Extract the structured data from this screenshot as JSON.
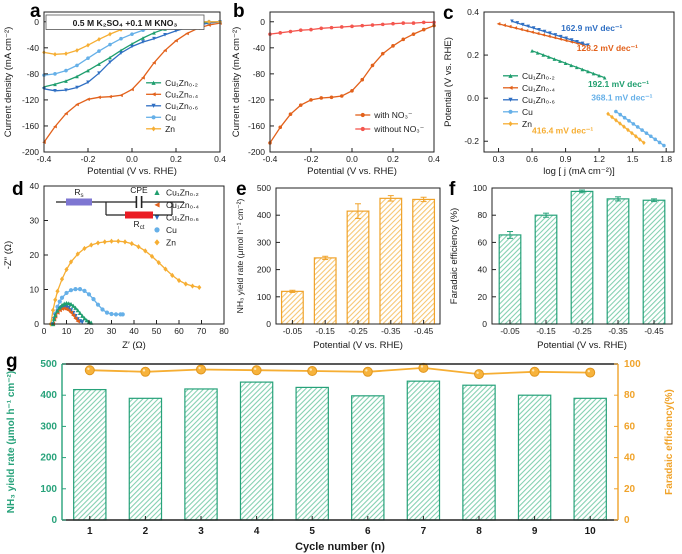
{
  "figure": {
    "colors": {
      "green": "#1f9e6e",
      "orange": "#e2611b",
      "blue": "#2f6fc3",
      "lightblue": "#66b0e8",
      "yellow": "#f6ae33",
      "red": "#f4564e",
      "bar_yellow_edge": "#f0a32a",
      "bar_yellow_hatch": "#f6c269",
      "bar_green_edge": "#27a27a",
      "bar_green_hatch": "#7accaa",
      "axis": "#222222",
      "rs_box": "#7e76d2",
      "rct_box": "#ea1c24",
      "g_left_axis": "#27a27a",
      "g_right_axis": "#f0a32a"
    }
  },
  "chart_data": [
    {
      "id": "a",
      "letter": "a",
      "type": "line",
      "title": "0.5 M K₂SO₄ +0.1 M KNO₃",
      "xlabel": "Potential (V vs. RHE)",
      "ylabel": "Current density (mA cm⁻²)",
      "xlim": [
        -0.4,
        0.4
      ],
      "ylim": [
        -200,
        15
      ],
      "xticks": [
        -0.4,
        -0.2,
        0,
        0.2,
        0.4
      ],
      "xtick_labels": [
        "-0.4",
        "-0.2",
        "0.0",
        "0.2",
        "0.4"
      ],
      "yticks": [
        0,
        -40,
        -80,
        -120,
        -160,
        -200
      ],
      "ytick_labels": [
        "0",
        "-40",
        "-80",
        "-120",
        "-160",
        "-200"
      ],
      "x": [
        -0.4,
        -0.35,
        -0.3,
        -0.25,
        -0.2,
        -0.15,
        -0.1,
        -0.05,
        0,
        0.05,
        0.1,
        0.15,
        0.2,
        0.25,
        0.3,
        0.35,
        0.4
      ],
      "series": [
        {
          "name": "Cu₁Zn₀.₂",
          "color": "green",
          "marker": "triangle-up",
          "values": [
            -100,
            -96,
            -91,
            -84,
            -75,
            -65,
            -55,
            -44,
            -34,
            -25,
            -17,
            -11,
            -7,
            -4,
            -2,
            -1,
            0
          ]
        },
        {
          "name": "Cu₁Zn₀.₄",
          "color": "orange",
          "marker": "triangle-left",
          "values": [
            -185,
            -161,
            -141,
            -127,
            -119,
            -116,
            -115,
            -113,
            -104,
            -86,
            -63,
            -44,
            -29,
            -18,
            -10,
            -5,
            -2
          ]
        },
        {
          "name": "Cu₁Zn₀.₆",
          "color": "blue",
          "marker": "triangle-down",
          "values": [
            -103,
            -106,
            -105,
            -101,
            -93,
            -79,
            -62,
            -48,
            -38,
            -31,
            -26,
            -20,
            -14,
            -9,
            -5,
            -2,
            0
          ]
        },
        {
          "name": "Cu",
          "color": "lightblue",
          "marker": "circle",
          "values": [
            -82,
            -80,
            -75,
            -67,
            -56,
            -45,
            -35,
            -26,
            -19,
            -13,
            -8,
            -5,
            -3,
            -1,
            0,
            0,
            0
          ]
        },
        {
          "name": "Zn",
          "color": "yellow",
          "marker": "diamond",
          "values": [
            -47,
            -50,
            -49,
            -44,
            -36,
            -27,
            -19,
            -12,
            -7,
            -4,
            -2,
            -1,
            0,
            0,
            0,
            0,
            0
          ]
        }
      ],
      "legend": {
        "x": 0.58,
        "y": 0.47,
        "style": "line+marker",
        "spacing": 11.5
      }
    },
    {
      "id": "b",
      "letter": "b",
      "type": "line",
      "xlabel": "Potential (V vs. RHE)",
      "ylabel": "Current density (mA cm⁻²)",
      "xlim": [
        -0.4,
        0.4
      ],
      "ylim": [
        -200,
        15
      ],
      "xticks": [
        -0.4,
        -0.2,
        0,
        0.2,
        0.4
      ],
      "xtick_labels": [
        "-0.4",
        "-0.2",
        "0.0",
        "0.2",
        "0.4"
      ],
      "yticks": [
        0,
        -40,
        -80,
        -120,
        -160,
        -200
      ],
      "ytick_labels": [
        "0",
        "-40",
        "-80",
        "-120",
        "-160",
        "-200"
      ],
      "x": [
        -0.4,
        -0.35,
        -0.3,
        -0.25,
        -0.2,
        -0.15,
        -0.1,
        -0.05,
        0,
        0.05,
        0.1,
        0.15,
        0.2,
        0.25,
        0.3,
        0.35,
        0.4
      ],
      "series": [
        {
          "name": "with NO₃⁻",
          "color": "orange",
          "marker": "circle",
          "values": [
            -186,
            -162,
            -142,
            -128,
            -120,
            -117,
            -116,
            -114,
            -106,
            -89,
            -67,
            -49,
            -37,
            -27,
            -19,
            -12,
            -6
          ]
        },
        {
          "name": "without NO₃⁻",
          "color": "red",
          "marker": "circle",
          "values": [
            -19,
            -17,
            -15,
            -13,
            -12,
            -10,
            -9,
            -8,
            -7,
            -6,
            -5,
            -4,
            -3,
            -2,
            -2,
            -1,
            -1
          ]
        }
      ],
      "legend": {
        "x": 0.52,
        "y": 0.7,
        "style": "line+marker",
        "spacing": 14
      }
    },
    {
      "id": "c",
      "letter": "c",
      "type": "line",
      "xlabel": "log [ j (mA cm⁻²)]",
      "ylabel": "Potential (V vs. RHE)",
      "xlim": [
        0.17,
        1.87
      ],
      "ylim": [
        -0.25,
        0.4
      ],
      "xticks": [
        0.3,
        0.6,
        0.9,
        1.2,
        1.5,
        1.8
      ],
      "xtick_labels": [
        "0.3",
        "0.6",
        "0.9",
        "1.2",
        "1.5",
        "1.8"
      ],
      "yticks": [
        0.4,
        0.2,
        0,
        -0.2
      ],
      "ytick_labels": [
        "0.4",
        "0.2",
        "0.0",
        "-0.2"
      ],
      "series": [
        {
          "name": "Cu₁Zn₀.₂",
          "color": "green",
          "marker": "triangle-up",
          "x": [
            0.6,
            1.25
          ],
          "values": [
            0.22,
            0.095
          ],
          "n_markers": 14
        },
        {
          "name": "Cu₁Zn₀.₄",
          "color": "orange",
          "marker": "triangle-left",
          "x": [
            0.3,
            1.05
          ],
          "values": [
            0.345,
            0.249
          ],
          "n_markers": 16
        },
        {
          "name": "Cu₁Zn₀.₆",
          "color": "blue",
          "marker": "triangle-down",
          "x": [
            0.42,
            1.1
          ],
          "values": [
            0.357,
            0.246
          ],
          "n_markers": 15
        },
        {
          "name": "Cu",
          "color": "lightblue",
          "marker": "circle",
          "x": [
            1.35,
            1.78
          ],
          "values": [
            -0.062,
            -0.22
          ],
          "n_markers": 12
        },
        {
          "name": "Zn",
          "color": "yellow",
          "marker": "diamond",
          "x": [
            1.28,
            1.6
          ],
          "values": [
            -0.073,
            -0.207
          ],
          "n_markers": 10
        }
      ],
      "annotations": [
        {
          "text": "162.9 mV dec⁻¹",
          "color": "blue",
          "x": 0.86,
          "y": 0.312
        },
        {
          "text": "128.2 mV dec⁻¹",
          "color": "orange",
          "x": 1.0,
          "y": 0.218
        },
        {
          "text": "192.1 mV dec⁻¹",
          "color": "green",
          "x": 1.1,
          "y": 0.052
        },
        {
          "text": "368.1 mV dec⁻¹",
          "color": "lightblue",
          "x": 1.13,
          "y": -0.012
        },
        {
          "text": "416.4 mV dec⁻¹",
          "color": "yellow",
          "x": 0.6,
          "y": -0.165
        }
      ],
      "legend": {
        "x": 0.1,
        "y": 0.42,
        "style": "line+marker",
        "spacing": 12
      }
    },
    {
      "id": "d",
      "letter": "d",
      "type": "line",
      "draw_reversed": true,
      "xlabel": "Z′ (Ω)",
      "ylabel": "-Z″ (Ω)",
      "xlim": [
        0,
        80
      ],
      "ylim": [
        0,
        40
      ],
      "xticks": [
        0,
        10,
        20,
        30,
        40,
        50,
        60,
        70,
        80
      ],
      "xtick_labels": [
        "0",
        "10",
        "20",
        "30",
        "40",
        "50",
        "60",
        "70",
        "80"
      ],
      "yticks": [
        0,
        10,
        20,
        30,
        40
      ],
      "ytick_labels": [
        "0",
        "10",
        "20",
        "30",
        "40"
      ],
      "series": [
        {
          "name": "Cu₁Zn₀.₂",
          "color": "green",
          "marker": "triangle-up",
          "points": [
            [
              4,
              0
            ],
            [
              4.5,
              1.5
            ],
            [
              5,
              2.6
            ],
            [
              6,
              3.9
            ],
            [
              7,
              4.8
            ],
            [
              8,
              5.5
            ],
            [
              9,
              5.9
            ],
            [
              10,
              6.1
            ],
            [
              11,
              6.0
            ],
            [
              12,
              5.8
            ],
            [
              13,
              5.3
            ],
            [
              14,
              4.7
            ],
            [
              15,
              4.0
            ],
            [
              16,
              3.2
            ],
            [
              17,
              2.4
            ],
            [
              18,
              1.7
            ],
            [
              19,
              1.1
            ],
            [
              20,
              0.7
            ],
            [
              21,
              0.4
            ]
          ]
        },
        {
          "name": "Cu₁Zn₀.₄",
          "color": "orange",
          "marker": "triangle-left",
          "points": [
            [
              4,
              0
            ],
            [
              4.5,
              1.3
            ],
            [
              5,
              2.2
            ],
            [
              6,
              3.3
            ],
            [
              7,
              4.0
            ],
            [
              8,
              4.4
            ],
            [
              9,
              4.5
            ],
            [
              10,
              4.3
            ],
            [
              11,
              3.9
            ],
            [
              12,
              3.3
            ],
            [
              13,
              2.5
            ],
            [
              14,
              1.6
            ],
            [
              15,
              0.8
            ]
          ]
        },
        {
          "name": "Cu₁Zn₀.₆",
          "color": "blue",
          "marker": "triangle-down",
          "points": [
            [
              4,
              0
            ],
            [
              4.5,
              1.4
            ],
            [
              5,
              2.4
            ],
            [
              6,
              3.6
            ],
            [
              7,
              4.4
            ],
            [
              8,
              4.9
            ],
            [
              9,
              5.1
            ],
            [
              10,
              5.0
            ],
            [
              11,
              4.6
            ],
            [
              12,
              4.0
            ],
            [
              13,
              3.2
            ],
            [
              14,
              2.3
            ],
            [
              15,
              1.4
            ],
            [
              16,
              0.8
            ],
            [
              17,
              0.5
            ]
          ]
        },
        {
          "name": "Cu",
          "color": "lightblue",
          "marker": "circle",
          "points": [
            [
              4,
              0
            ],
            [
              5,
              3
            ],
            [
              6,
              5
            ],
            [
              7,
              6.5
            ],
            [
              8,
              7.6
            ],
            [
              10,
              9.0
            ],
            [
              12,
              9.8
            ],
            [
              14,
              10.1
            ],
            [
              16,
              10.1
            ],
            [
              18,
              9.6
            ],
            [
              20,
              8.6
            ],
            [
              22,
              7.2
            ],
            [
              24,
              5.6
            ],
            [
              26,
              4.2
            ],
            [
              28,
              3.3
            ],
            [
              30,
              2.9
            ],
            [
              32,
              2.8
            ],
            [
              34,
              2.8
            ],
            [
              35,
              2.8
            ]
          ]
        },
        {
          "name": "Zn",
          "color": "yellow",
          "marker": "diamond",
          "points": [
            [
              3,
              0
            ],
            [
              4,
              4
            ],
            [
              5,
              7
            ],
            [
              6,
              9.5
            ],
            [
              8,
              13
            ],
            [
              10,
              15.8
            ],
            [
              12,
              18
            ],
            [
              15,
              20.3
            ],
            [
              18,
              21.9
            ],
            [
              21,
              22.9
            ],
            [
              24,
              23.5
            ],
            [
              27,
              23.8
            ],
            [
              30,
              24.0
            ],
            [
              33,
              24.0
            ],
            [
              36,
              23.8
            ],
            [
              39,
              23.3
            ],
            [
              42,
              22.4
            ],
            [
              45,
              21.2
            ],
            [
              48,
              19.6
            ],
            [
              51,
              17.8
            ],
            [
              54,
              15.9
            ],
            [
              57,
              14.1
            ],
            [
              60,
              12.6
            ],
            [
              63,
              11.6
            ],
            [
              66,
              11.0
            ],
            [
              69,
              10.6
            ]
          ]
        }
      ],
      "legend": {
        "x": 0.6,
        "y": 0.01,
        "style": "marker",
        "spacing": 12.5
      },
      "inset": {
        "rs_main": "R",
        "rs_sub": "s",
        "cpe": "CPE",
        "rct_main": "R",
        "rct_sub": "ct"
      }
    },
    {
      "id": "e",
      "letter": "e",
      "type": "bar",
      "xlabel": "Potential (V vs. RHE)",
      "ylabel": "NH₃ yield rate (μmol h⁻¹ cm⁻²)",
      "categories": [
        "-0.05",
        "-0.15",
        "-0.25",
        "-0.35",
        "-0.45"
      ],
      "ylim": [
        0,
        500
      ],
      "yticks": [
        0,
        100,
        200,
        300,
        400,
        500
      ],
      "ytick_labels": [
        "0",
        "100",
        "200",
        "300",
        "400",
        "500"
      ],
      "values": [
        120,
        243,
        415,
        462,
        458
      ],
      "errors": [
        4,
        6,
        27,
        10,
        8
      ],
      "bar_color": "bar_yellow_hatch",
      "bar_edge": "bar_yellow_edge",
      "bar_width": 0.66
    },
    {
      "id": "f",
      "letter": "f",
      "type": "bar",
      "xlabel": "Potential (V vs. RHE)",
      "ylabel": "Faradaic efficiency (%)",
      "categories": [
        "-0.05",
        "-0.15",
        "-0.25",
        "-0.35",
        "-0.45"
      ],
      "ylim": [
        0,
        100
      ],
      "yticks": [
        0,
        20,
        40,
        60,
        80,
        100
      ],
      "ytick_labels": [
        "0",
        "20",
        "40",
        "60",
        "80",
        "100"
      ],
      "values": [
        65.5,
        80,
        97.5,
        92,
        91
      ],
      "errors": [
        2.5,
        1.5,
        1,
        1.5,
        1
      ],
      "bar_color": "bar_green_hatch",
      "bar_edge": "bar_green_edge",
      "bar_width": 0.6
    },
    {
      "id": "g",
      "letter": "g",
      "type": "combo",
      "xlabel": "Cycle number (n)",
      "ylabel": "NH₃ yield rate (μmol h⁻¹ cm⁻²)",
      "y2label": "Faradaic efficiency(%)",
      "categories": [
        "1",
        "2",
        "3",
        "4",
        "5",
        "6",
        "7",
        "8",
        "9",
        "10"
      ],
      "ylim": [
        0,
        500
      ],
      "yticks": [
        0,
        100,
        200,
        300,
        400,
        500
      ],
      "ytick_labels": [
        "0",
        "100",
        "200",
        "300",
        "400",
        "500"
      ],
      "y2lim": [
        0,
        100
      ],
      "y2ticks": [
        0,
        20,
        40,
        60,
        80,
        100
      ],
      "y2tick_labels": [
        "0",
        "20",
        "40",
        "60",
        "80",
        "100"
      ],
      "bars": {
        "values": [
          418,
          390,
          420,
          442,
          425,
          398,
          445,
          432,
          400,
          390
        ],
        "color": "bar_green_hatch",
        "edge": "bar_green_edge"
      },
      "line": {
        "name": "Faradaic efficiency",
        "values": [
          96,
          95,
          96.5,
          96,
          95.5,
          95,
          97.5,
          93.5,
          95,
          94.5
        ],
        "color": "yellow",
        "marker_fill": "#f7b33c",
        "marker_edge": "#e0961e"
      },
      "bar_width": 0.58
    }
  ]
}
